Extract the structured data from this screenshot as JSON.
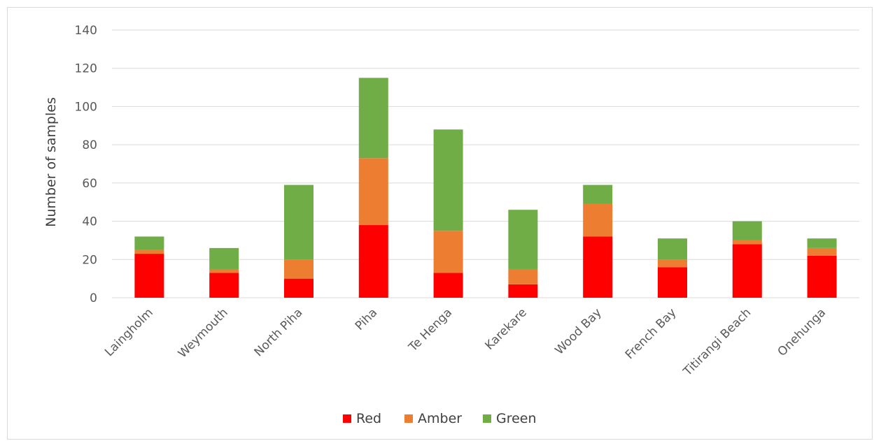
{
  "chart_data": {
    "type": "bar",
    "stacked": true,
    "categories": [
      "Laingholm",
      "Weymouth",
      "North Piha",
      "Piha",
      "Te Henga",
      "Karekare",
      "Wood Bay",
      "French Bay",
      "Titirangi Beach",
      "Onehunga"
    ],
    "series": [
      {
        "name": "Red",
        "color": "#ff0000",
        "values": [
          23,
          13,
          10,
          38,
          13,
          7,
          32,
          16,
          28,
          22
        ]
      },
      {
        "name": "Amber",
        "color": "#ed7d31",
        "values": [
          2,
          2,
          10,
          35,
          22,
          8,
          17,
          4,
          2,
          4
        ]
      },
      {
        "name": "Green",
        "color": "#70ad47",
        "values": [
          7,
          11,
          39,
          42,
          53,
          31,
          10,
          11,
          10,
          5
        ]
      }
    ],
    "title": "",
    "xlabel": "",
    "ylabel": "Number of samples",
    "ylim": [
      0,
      140
    ],
    "yticks": [
      0,
      20,
      40,
      60,
      80,
      100,
      120,
      140
    ],
    "grid": true,
    "legend": "bottom"
  }
}
